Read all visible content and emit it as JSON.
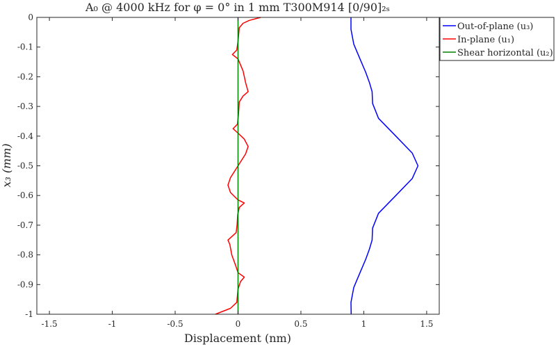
{
  "chart_data": {
    "type": "line",
    "title": "A₀ @ 4000 kHz for φ = 0° in 1 mm T300M914 [0/90]₂ₛ",
    "xlabel": "Displacement (nm)",
    "ylabel": "x₃ (mm)",
    "xlim": [
      -1.6,
      1.6
    ],
    "ylim": [
      -1,
      0
    ],
    "xticks": [
      -1.5,
      -1,
      -0.5,
      0,
      0.5,
      1,
      1.5
    ],
    "xtick_labels": [
      "-1.5",
      "-1",
      "-0.5",
      "0",
      "0.5",
      "1",
      "1.5"
    ],
    "yticks": [
      0,
      -0.1,
      -0.2,
      -0.3,
      -0.4,
      -0.5,
      -0.6,
      -0.7,
      -0.8,
      -0.9,
      -1
    ],
    "ytick_labels": [
      "0",
      "-0.1",
      "-0.2",
      "-0.3",
      "-0.4",
      "-0.5",
      "-0.6",
      "-0.7",
      "-0.8",
      "-0.9",
      "-1"
    ],
    "grid": false,
    "legend_position": "outside-top-right",
    "series": [
      {
        "name": "Out-of-plane (u₃)",
        "color": "#0000ff",
        "points": [
          [
            0.898,
            0
          ],
          [
            0.898,
            -0.04
          ],
          [
            0.92,
            -0.09
          ],
          [
            0.97,
            -0.14
          ],
          [
            1.015,
            -0.185
          ],
          [
            1.045,
            -0.22
          ],
          [
            1.066,
            -0.25
          ],
          [
            1.07,
            -0.29
          ],
          [
            1.117,
            -0.34
          ],
          [
            1.255,
            -0.4
          ],
          [
            1.385,
            -0.457
          ],
          [
            1.431,
            -0.5
          ],
          [
            1.385,
            -0.543
          ],
          [
            1.255,
            -0.6
          ],
          [
            1.117,
            -0.66
          ],
          [
            1.07,
            -0.71
          ],
          [
            1.066,
            -0.75
          ],
          [
            1.045,
            -0.78
          ],
          [
            1.015,
            -0.815
          ],
          [
            0.97,
            -0.86
          ],
          [
            0.92,
            -0.91
          ],
          [
            0.898,
            -0.96
          ],
          [
            0.9,
            -1
          ]
        ]
      },
      {
        "name": "In-plane (u₁)",
        "color": "#ff0000",
        "points": [
          [
            0.18,
            0
          ],
          [
            0.09,
            -0.01
          ],
          [
            0.04,
            -0.02
          ],
          [
            0.01,
            -0.035
          ],
          [
            0.0,
            -0.08
          ],
          [
            -0.01,
            -0.11
          ],
          [
            -0.045,
            -0.125
          ],
          [
            0.0,
            -0.14
          ],
          [
            0.04,
            -0.18
          ],
          [
            0.06,
            -0.22
          ],
          [
            0.08,
            -0.25
          ],
          [
            0.04,
            -0.265
          ],
          [
            0.01,
            -0.285
          ],
          [
            0.003,
            -0.33
          ],
          [
            -0.005,
            -0.36
          ],
          [
            -0.04,
            -0.375
          ],
          [
            0.0,
            -0.39
          ],
          [
            0.05,
            -0.41
          ],
          [
            0.08,
            -0.435
          ],
          [
            0.06,
            -0.46
          ],
          [
            0.0,
            -0.5
          ],
          [
            -0.06,
            -0.54
          ],
          [
            -0.08,
            -0.565
          ],
          [
            -0.06,
            -0.59
          ],
          [
            0.0,
            -0.615
          ],
          [
            0.05,
            -0.625
          ],
          [
            0.01,
            -0.64
          ],
          [
            -0.003,
            -0.665
          ],
          [
            -0.008,
            -0.7
          ],
          [
            -0.015,
            -0.725
          ],
          [
            -0.08,
            -0.75
          ],
          [
            -0.065,
            -0.765
          ],
          [
            -0.05,
            -0.8
          ],
          [
            -0.02,
            -0.835
          ],
          [
            0.0,
            -0.86
          ],
          [
            0.05,
            -0.875
          ],
          [
            0.02,
            -0.89
          ],
          [
            0.0,
            -0.915
          ],
          [
            -0.01,
            -0.96
          ],
          [
            -0.06,
            -0.98
          ],
          [
            -0.18,
            -1
          ]
        ]
      },
      {
        "name": "Shear horizontal (u₂)",
        "color": "#008000",
        "points": [
          [
            0,
            0
          ],
          [
            0,
            -1
          ]
        ]
      }
    ]
  }
}
